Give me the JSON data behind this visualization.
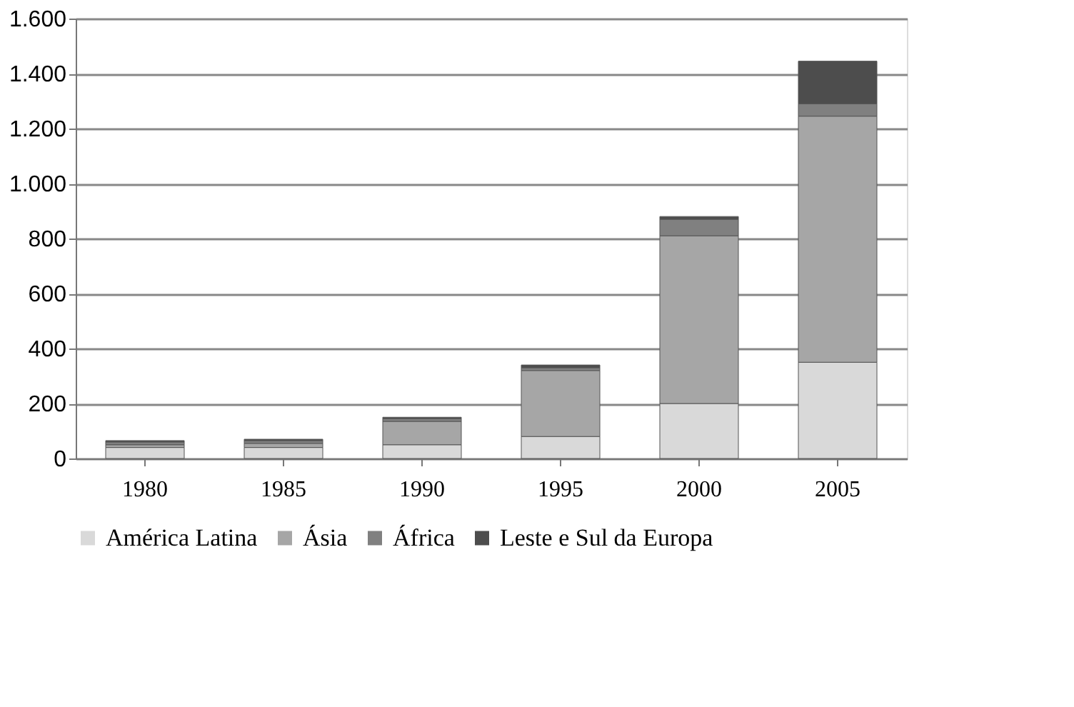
{
  "chart_data": {
    "type": "bar",
    "stacked": true,
    "categories": [
      "1980",
      "1985",
      "1990",
      "1995",
      "2000",
      "2005"
    ],
    "series": [
      {
        "name": "América Latina",
        "color": "#d9d9d9",
        "values": [
          40,
          40,
          50,
          80,
          200,
          350
        ]
      },
      {
        "name": "Ásia",
        "color": "#a6a6a6",
        "values": [
          10,
          15,
          85,
          240,
          610,
          895
        ]
      },
      {
        "name": "África",
        "color": "#808080",
        "values": [
          10,
          10,
          10,
          10,
          60,
          45
        ]
      },
      {
        "name": "Leste e Sul da Europa",
        "color": "#4d4d4d",
        "values": [
          5,
          5,
          5,
          10,
          10,
          155
        ]
      }
    ],
    "ylim": [
      0,
      1600
    ],
    "yticks": [
      0,
      200,
      400,
      600,
      800,
      {
        "value": 1000,
        "label": "1.000"
      },
      {
        "value": 1200,
        "label": "1.200"
      },
      {
        "value": 1400,
        "label": "1.400"
      },
      {
        "value": 1600,
        "label": "1.600"
      }
    ],
    "grid": "y",
    "legend": "bottom"
  }
}
